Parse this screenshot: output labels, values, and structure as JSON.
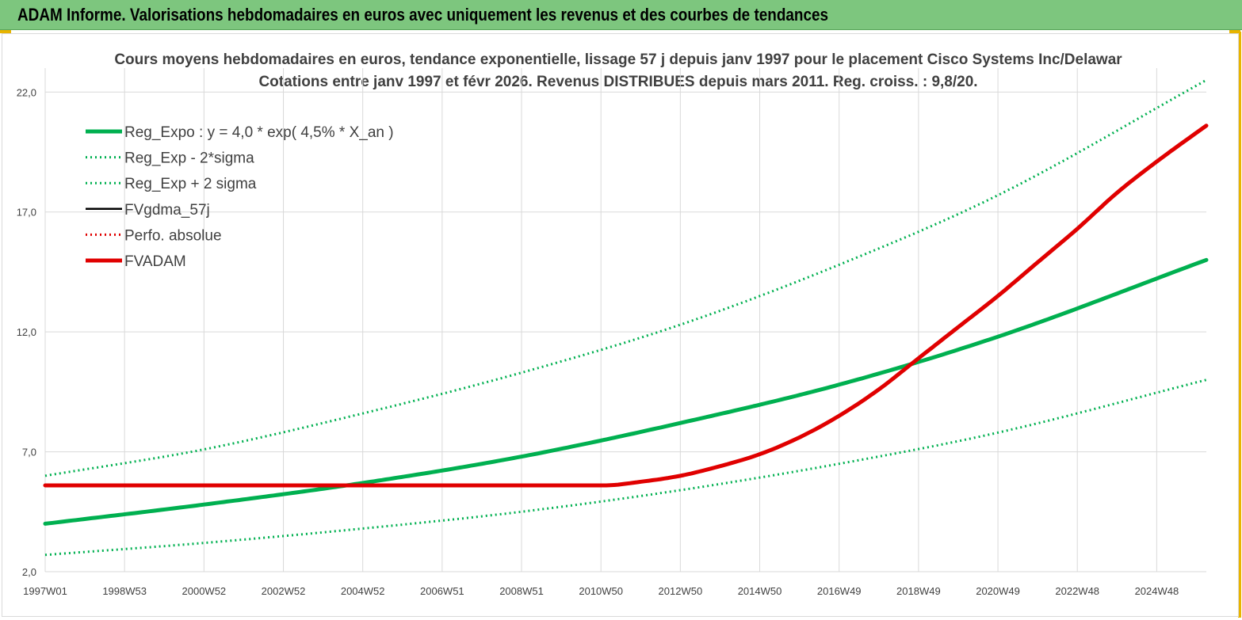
{
  "banner": {
    "title": "ADAM Informe. Valorisations hebdomadaires en euros avec uniquement les revenus et des courbes de tendances"
  },
  "colors": {
    "banner": "#7dc67e",
    "regression": "#00b050",
    "fvadam": "#e00000",
    "fvgdma": "#000000",
    "perfo": "#e00000"
  },
  "chart_data": {
    "type": "line",
    "title": "Cours moyens hebdomadaires en euros, tendance exponentielle, lissage 57 j depuis janv 1997  pour le placement Cisco Systems Inc/Delawar",
    "subtitle": "Cotations entre janv 1997 et févr 2026. Revenus DISTRIBUES depuis mars 2011. Reg. croiss. : 9,8/20.",
    "xlabel": "",
    "ylabel": "",
    "xlim": [
      1997.0,
      2026.25
    ],
    "ylim": [
      2.0,
      23.0
    ],
    "x_tick_labels": [
      "1997W01",
      "1998W53",
      "2000W52",
      "2002W52",
      "2004W52",
      "2006W51",
      "2008W51",
      "2010W50",
      "2012W50",
      "2014W50",
      "2016W49",
      "2018W49",
      "2020W49",
      "2022W48",
      "2024W48"
    ],
    "x_tick_positions": [
      1997.0,
      1999.0,
      2001.0,
      2003.0,
      2005.0,
      2007.0,
      2009.0,
      2011.0,
      2013.0,
      2015.0,
      2017.0,
      2019.0,
      2021.0,
      2023.0,
      2025.0
    ],
    "y_ticks": [
      "2,0",
      "7,0",
      "12,0",
      "17,0",
      "22,0"
    ],
    "y_tick_values": [
      2,
      7,
      12,
      17,
      22
    ],
    "grid": true,
    "legend_position": "top-left",
    "legend": [
      "Reg_Expo : y = 4,0 * exp( 4,5% *  X_an )",
      "Reg_Exp - 2*sigma",
      "Reg_Exp + 2 sigma",
      "FVgdma_57j",
      "Perfo. absolue",
      "FVADAM"
    ],
    "series": [
      {
        "name": "Reg_Expo : y = 4,0 * exp( 4,5% *  X_an )",
        "style": "solid-thick",
        "color": "#00b050",
        "x": [
          1997,
          2001,
          2005,
          2009,
          2013,
          2017,
          2021,
          2026.25
        ],
        "y": [
          4.0,
          4.8,
          5.7,
          6.8,
          8.2,
          9.8,
          11.8,
          15.0
        ]
      },
      {
        "name": "Reg_Exp - 2*sigma",
        "style": "dotted",
        "color": "#00b050",
        "x": [
          1997,
          2001,
          2005,
          2009,
          2013,
          2017,
          2021,
          2026.25
        ],
        "y": [
          2.7,
          3.2,
          3.8,
          4.5,
          5.4,
          6.5,
          7.8,
          10.0
        ]
      },
      {
        "name": "Reg_Exp + 2 sigma",
        "style": "dotted",
        "color": "#00b050",
        "x": [
          1997,
          2001,
          2005,
          2009,
          2013,
          2017,
          2021,
          2026.25
        ],
        "y": [
          6.0,
          7.1,
          8.6,
          10.3,
          12.3,
          14.8,
          17.7,
          22.5
        ]
      },
      {
        "name": "FVgdma_57j",
        "style": "solid",
        "color": "#000000",
        "x": [
          1997,
          2011.1,
          2012,
          2013,
          2014,
          2015,
          2016,
          2017,
          2018,
          2019,
          2020,
          2021,
          2022,
          2023,
          2024,
          2025,
          2026.25
        ],
        "y": [
          5.6,
          5.6,
          5.75,
          6.0,
          6.4,
          6.9,
          7.6,
          8.5,
          9.6,
          10.9,
          12.2,
          13.5,
          14.9,
          16.3,
          17.8,
          19.1,
          20.6
        ]
      },
      {
        "name": "Perfo. absolue",
        "style": "dotted",
        "color": "#e00000",
        "x": [
          1997,
          2011.1,
          2012,
          2013,
          2014,
          2015,
          2016,
          2017,
          2018,
          2019,
          2020,
          2021,
          2022,
          2023,
          2024,
          2025,
          2026.25
        ],
        "y": [
          5.6,
          5.6,
          5.75,
          6.0,
          6.4,
          6.9,
          7.6,
          8.5,
          9.6,
          10.9,
          12.2,
          13.5,
          14.9,
          16.3,
          17.8,
          19.1,
          20.6
        ]
      },
      {
        "name": "FVADAM",
        "style": "solid-thick",
        "color": "#e00000",
        "x": [
          1997,
          2011.1,
          2012,
          2013,
          2014,
          2015,
          2016,
          2017,
          2018,
          2019,
          2020,
          2021,
          2022,
          2023,
          2024,
          2025,
          2026.25
        ],
        "y": [
          5.6,
          5.6,
          5.75,
          6.0,
          6.4,
          6.9,
          7.6,
          8.5,
          9.6,
          10.9,
          12.2,
          13.5,
          14.9,
          16.3,
          17.8,
          19.1,
          20.6
        ]
      }
    ]
  }
}
